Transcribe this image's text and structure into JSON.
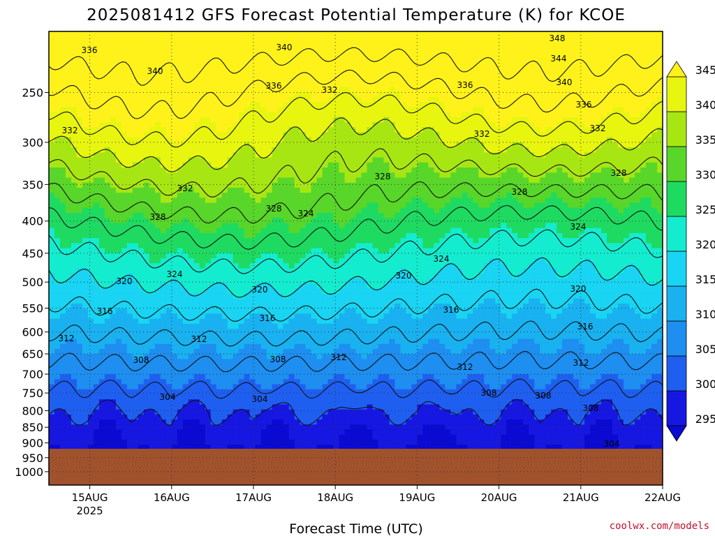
{
  "title": "2025081412 GFS Forecast Potential Temperature (K) for KCOE",
  "credit": "coolwx.com/models",
  "xlabel": "Forecast Time (UTC)",
  "chart_data": {
    "type": "heatmap",
    "title": "2025081412 GFS Forecast Potential Temperature (K) for KCOE",
    "xlabel": "Forecast Time (UTC)",
    "ylabel": "",
    "y_scale": "log (pressure, hPa, inverted)",
    "x_ticks": [
      "15AUG",
      "16AUG",
      "17AUG",
      "18AUG",
      "19AUG",
      "20AUG",
      "21AUG",
      "22AUG"
    ],
    "x_tick_sublabel": "2025",
    "xlim_days": [
      14.5,
      22.0
    ],
    "y_ticks": [
      250,
      300,
      350,
      400,
      450,
      500,
      550,
      600,
      650,
      700,
      750,
      800,
      850,
      900,
      950,
      1000
    ],
    "ylim": [
      1050,
      200
    ],
    "terrain_pressure_hpa": 920,
    "colorbar": {
      "levels": [
        295,
        300,
        305,
        310,
        315,
        320,
        325,
        330,
        335,
        340,
        345
      ],
      "labels": [
        "295",
        "300",
        "305",
        "310",
        "315",
        "320",
        "325",
        "330",
        "335",
        "340",
        "345"
      ],
      "colors": [
        "#0a0ad2",
        "#1717e2",
        "#1e5ff0",
        "#1e8ef0",
        "#19b1f0",
        "#19d4f2",
        "#14eccf",
        "#1fda61",
        "#59d62a",
        "#a8e613",
        "#e8f50f",
        "#fff21a"
      ],
      "extend": "both"
    },
    "contour_interval": 4,
    "contour_labels": [
      "348",
      "344",
      "340",
      "336",
      "332",
      "328",
      "324",
      "320",
      "316",
      "312",
      "308",
      "304"
    ],
    "grid": true
  }
}
